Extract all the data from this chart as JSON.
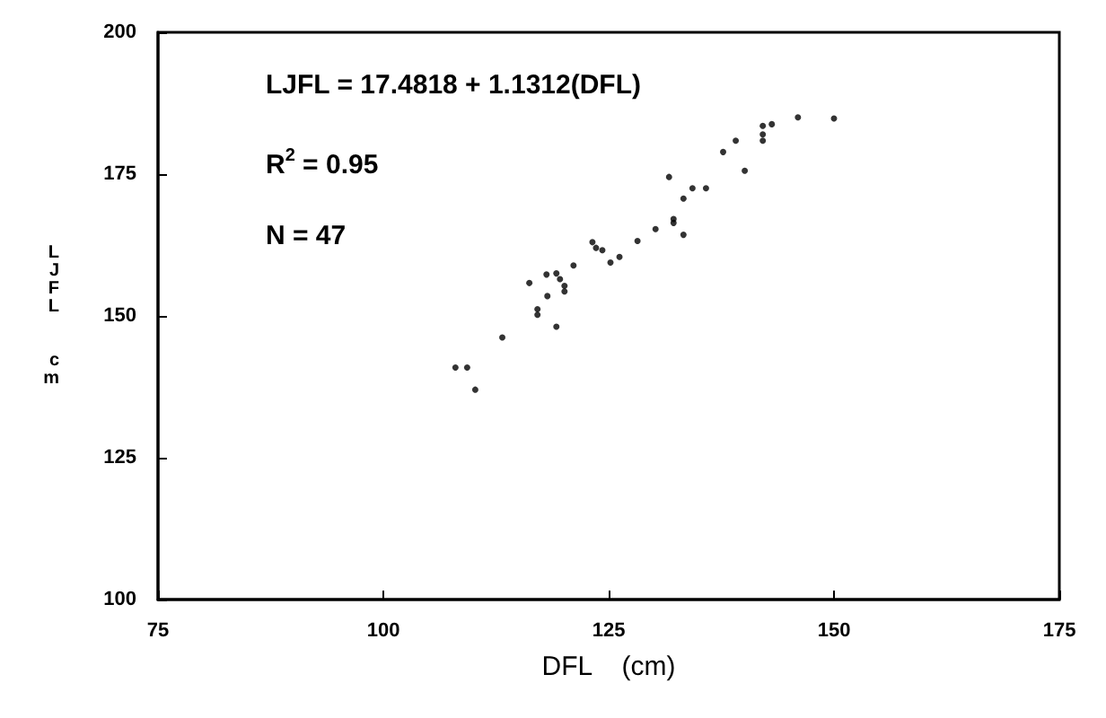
{
  "chart_data": {
    "type": "scatter",
    "xlabel": "DFL    (cm)",
    "ylabel": "LJFL  cm",
    "annotations": [
      "LJFL = 17.4818 + 1.1312(DFL)",
      "R$^{2}$ = 0.95",
      "N = 47"
    ],
    "x": [
      108.0,
      109.3,
      110.2,
      113.2,
      116.2,
      117.1,
      117.1,
      118.1,
      118.2,
      119.2,
      119.6,
      119.2,
      120.1,
      120.1,
      121.1,
      123.2,
      123.6,
      124.3,
      125.2,
      126.2,
      128.2,
      130.2,
      131.7,
      132.2,
      132.2,
      133.3,
      133.3,
      134.3,
      135.8,
      137.7,
      139.1,
      140.1,
      142.1,
      142.1,
      142.1,
      143.1,
      146.0,
      150.0
    ],
    "values": [
      140.9,
      140.9,
      137.0,
      146.2,
      155.8,
      151.2,
      150.2,
      157.3,
      153.5,
      157.5,
      156.5,
      148.1,
      155.3,
      154.3,
      158.9,
      163.0,
      162.0,
      161.6,
      159.4,
      160.4,
      163.2,
      165.3,
      174.5,
      167.1,
      166.4,
      170.7,
      164.3,
      172.5,
      172.5,
      178.9,
      180.9,
      175.6,
      183.5,
      182.0,
      180.9,
      183.8,
      185.0,
      184.8
    ],
    "color": "#000000",
    "marker": "circle",
    "grid": false,
    "xlim": [
      75,
      175
    ],
    "xticks": [
      75,
      100,
      125,
      150,
      175
    ],
    "ylim": [
      100,
      200
    ],
    "yticks": [
      100,
      125,
      150,
      175,
      200
    ]
  }
}
